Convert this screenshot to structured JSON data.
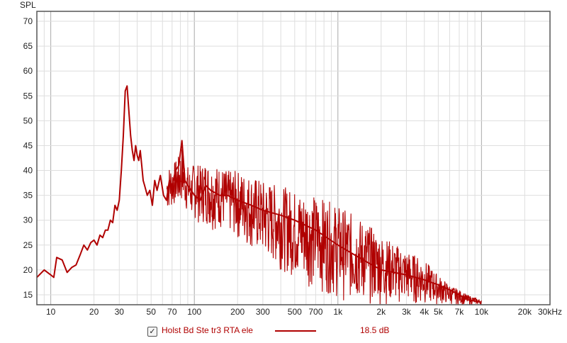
{
  "chart_data": {
    "type": "line",
    "title": "",
    "ylabel": "SPL",
    "xlabel": "",
    "xscale": "log",
    "xlim": [
      8,
      30000
    ],
    "ylim": [
      13,
      72
    ],
    "y_ticks": [
      15,
      20,
      25,
      30,
      35,
      40,
      45,
      50,
      55,
      60,
      65,
      70
    ],
    "x_ticks": [
      {
        "value": 10,
        "label": "10"
      },
      {
        "value": 20,
        "label": "20"
      },
      {
        "value": 30,
        "label": "30"
      },
      {
        "value": 50,
        "label": "50"
      },
      {
        "value": 70,
        "label": "70"
      },
      {
        "value": 100,
        "label": "100"
      },
      {
        "value": 200,
        "label": "200"
      },
      {
        "value": 300,
        "label": "300"
      },
      {
        "value": 500,
        "label": "500"
      },
      {
        "value": 700,
        "label": "700"
      },
      {
        "value": 1000,
        "label": "1k"
      },
      {
        "value": 2000,
        "label": "2k"
      },
      {
        "value": 3000,
        "label": "3k"
      },
      {
        "value": 4000,
        "label": "4k"
      },
      {
        "value": 5000,
        "label": "5k"
      },
      {
        "value": 7000,
        "label": "7k"
      },
      {
        "value": 10000,
        "label": "10k"
      },
      {
        "value": 20000,
        "label": "20k"
      },
      {
        "value": 30000,
        "label": "30kHz"
      }
    ],
    "grid": true,
    "series": [
      {
        "name": "Holst Bd Ste tr3 RTA ele",
        "color": "#b00000",
        "x": [
          8,
          9,
          10,
          10.5,
          11,
          12,
          13,
          14,
          15,
          16,
          17,
          18,
          19,
          20,
          21,
          22,
          23,
          24,
          25,
          26,
          27,
          28,
          29,
          30,
          31,
          32,
          33,
          34,
          35,
          36,
          37,
          38,
          39,
          40,
          41,
          42,
          43,
          44,
          45,
          47,
          49,
          51,
          53,
          55,
          58,
          61,
          64,
          67,
          70,
          74,
          78,
          82,
          86,
          90,
          95,
          100,
          110,
          120,
          130,
          150,
          170,
          200,
          250,
          300,
          400,
          500,
          700,
          1000,
          1500,
          2000,
          3000,
          4000,
          5000,
          6000,
          7000,
          8000,
          10000
        ],
        "y": [
          18.5,
          20,
          19,
          18.5,
          22.5,
          22,
          19.5,
          20.5,
          21,
          23,
          25,
          24,
          25.5,
          26,
          25,
          27,
          26.5,
          28,
          28,
          30,
          29.5,
          33,
          32,
          34,
          40,
          47,
          56,
          57,
          52,
          47,
          44,
          42,
          45,
          43,
          42,
          44,
          41,
          38,
          37,
          35,
          36,
          33,
          38,
          36,
          39,
          35,
          34,
          38,
          37,
          40,
          41,
          46,
          38,
          37,
          36,
          35,
          34,
          37,
          36,
          35,
          35,
          34,
          33,
          32,
          31,
          30,
          28,
          25,
          22,
          20,
          19,
          18,
          17,
          16,
          15,
          14,
          13.5
        ],
        "range_low": [
          null,
          null,
          null,
          null,
          null,
          null,
          null,
          null,
          null,
          null,
          null,
          null,
          null,
          null,
          null,
          null,
          null,
          null,
          null,
          null,
          null,
          null,
          null,
          null,
          null,
          null,
          null,
          null,
          null,
          null,
          null,
          null,
          null,
          null,
          null,
          null,
          null,
          null,
          null,
          null,
          null,
          null,
          null,
          null,
          null,
          null,
          31,
          32,
          32,
          33,
          32,
          33,
          32,
          31,
          30,
          30,
          29,
          29,
          28,
          28,
          27,
          26,
          24,
          22,
          20,
          18,
          16,
          14,
          13,
          13,
          13,
          13,
          13,
          13,
          13,
          13,
          13
        ],
        "range_high": [
          null,
          null,
          null,
          null,
          null,
          null,
          null,
          null,
          null,
          null,
          null,
          null,
          null,
          null,
          null,
          null,
          null,
          null,
          null,
          null,
          null,
          null,
          null,
          null,
          null,
          null,
          null,
          null,
          null,
          null,
          null,
          null,
          null,
          null,
          null,
          null,
          null,
          null,
          null,
          null,
          null,
          null,
          null,
          null,
          null,
          null,
          40,
          41,
          41,
          42,
          43,
          45,
          42,
          41,
          40,
          42,
          41,
          42,
          41,
          41,
          40,
          40,
          39,
          38,
          37,
          36,
          35,
          33,
          30,
          27,
          24,
          22,
          19,
          17,
          16,
          15,
          14
        ]
      }
    ]
  },
  "legend": {
    "checked": true,
    "checkmark": "✓",
    "label": "Holst Bd Ste tr3 RTA ele",
    "value": "18.5 dB",
    "color": "#b00000"
  },
  "colors": {
    "frame": "#555555",
    "grid_major": "#a9a9a9",
    "grid_minor": "#dedede",
    "series": "#b00000"
  }
}
